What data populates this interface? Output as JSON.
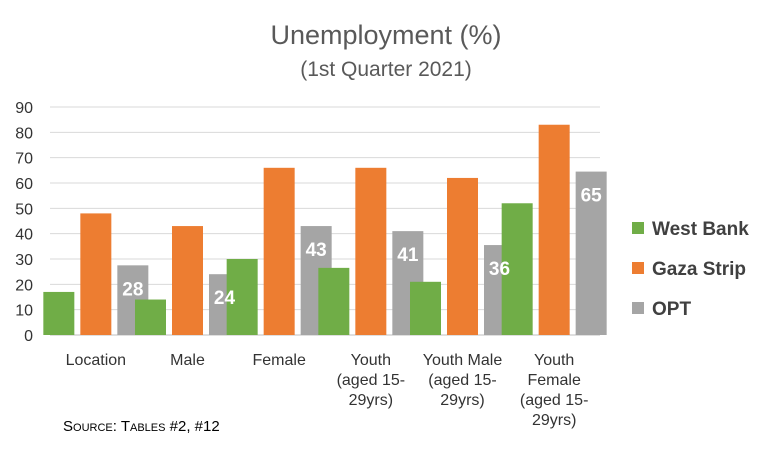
{
  "chart_data": {
    "type": "bar",
    "title": "Unemployment (%)",
    "subtitle": "(1st Quarter 2021)",
    "categories": [
      [
        "Location"
      ],
      [
        "Male"
      ],
      [
        "Female"
      ],
      [
        "Youth",
        "(aged 15-",
        "29yrs)"
      ],
      [
        "Youth Male",
        "(aged 15-",
        "29yrs)"
      ],
      [
        "Youth",
        "Female",
        "(aged 15-",
        "29yrs)"
      ]
    ],
    "series": [
      {
        "name": "West Bank",
        "color": "#70AD47",
        "values": [
          17,
          14,
          30,
          26.5,
          21,
          52
        ],
        "labels": [
          "",
          "",
          "",
          "",
          "",
          ""
        ]
      },
      {
        "name": "Gaza Strip",
        "color": "#ED7D31",
        "values": [
          48,
          43,
          66,
          66,
          62,
          83
        ],
        "labels": [
          "",
          "",
          "",
          "",
          "",
          ""
        ]
      },
      {
        "name": "OPT",
        "color": "#A5A5A5",
        "values": [
          27.5,
          24,
          43,
          41,
          35.5,
          64.5
        ],
        "labels": [
          "28",
          "24",
          "43",
          "41",
          "36",
          "65"
        ]
      }
    ],
    "yticks": [
      0,
      10,
      20,
      30,
      40,
      50,
      60,
      70,
      80,
      90
    ],
    "ylim": [
      0,
      90
    ],
    "grid": true,
    "legend_position": "right"
  },
  "source": {
    "prefix_cap": "S",
    "prefix_rest": "ource",
    "colon": ": ",
    "t_cap": "T",
    "t_rest": "ables",
    "refs": " #2, #12"
  }
}
